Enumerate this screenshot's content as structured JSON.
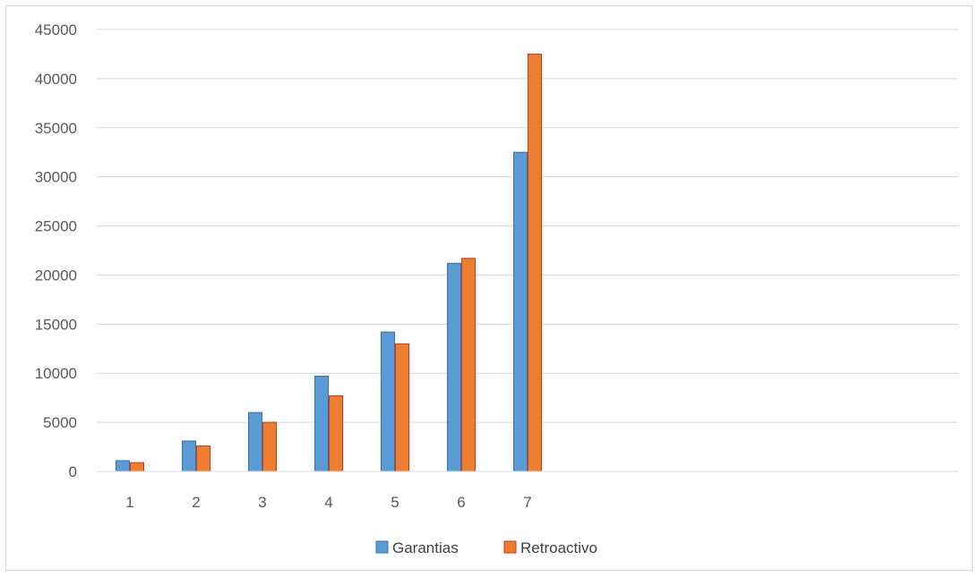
{
  "chart_data": {
    "type": "bar",
    "title": "",
    "xlabel": "",
    "ylabel": "",
    "categories": [
      "1",
      "2",
      "3",
      "4",
      "5",
      "6",
      "7"
    ],
    "ylim": [
      0,
      45000
    ],
    "yticks": [
      0,
      5000,
      10000,
      15000,
      20000,
      25000,
      30000,
      35000,
      40000,
      45000
    ],
    "grid": true,
    "legend_position": "bottom",
    "series": [
      {
        "name": "Garantias",
        "color": "#5b9bd5",
        "stroke": "#2e75b6",
        "values": [
          1100,
          3100,
          6000,
          9700,
          14200,
          21200,
          32500
        ]
      },
      {
        "name": "Retroactivo",
        "color": "#ed7d31",
        "stroke": "#d9360b",
        "values": [
          900,
          2600,
          5000,
          7700,
          13000,
          21700,
          42500
        ]
      }
    ]
  }
}
